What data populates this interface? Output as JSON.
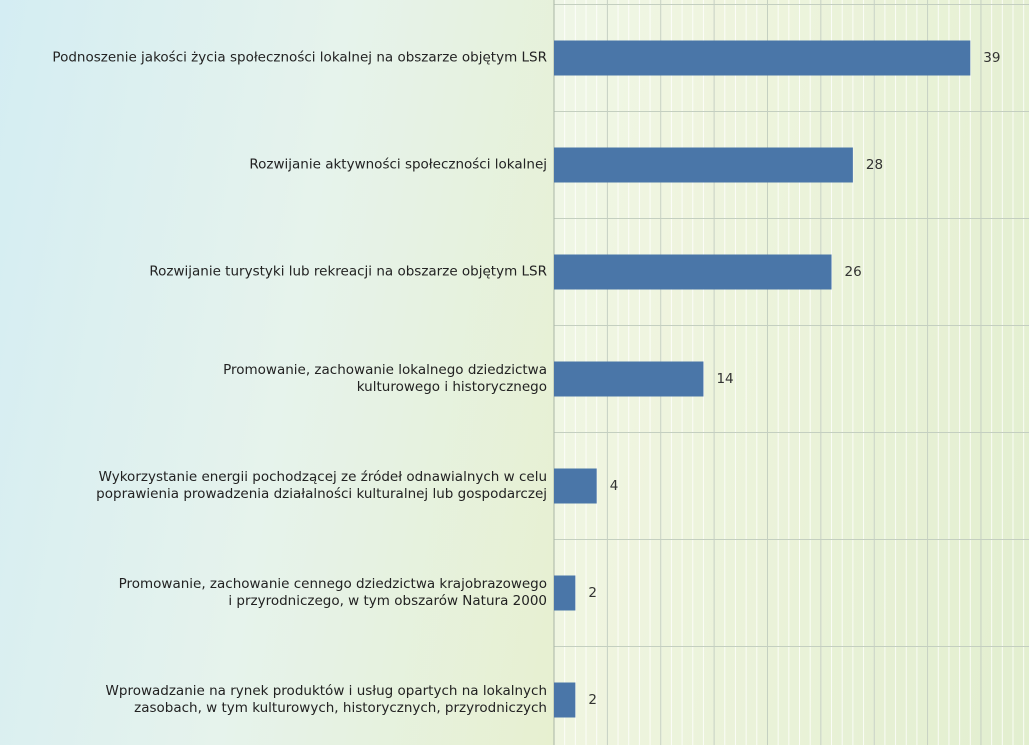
{
  "chart_data": {
    "type": "barh",
    "categories": [
      "Podnoszenie jakości życia społeczności lokalnej na obszarze objętym LSR",
      "Rozwijanie aktywności społeczności lokalnej",
      "Rozwijanie turystyki lub rekreacji na obszarze objętym LSR",
      "Promowanie, zachowanie lokalnego dziedzictwa\nkulturowego i historycznego",
      "Wykorzystanie energii pochodzącej ze źródeł odnawialnych w celu\npoprawienia prowadzenia działalności kulturalnej lub gospodarczej",
      "Promowanie, zachowanie cennego dziedzictwa krajobrazowego\ni przyrodniczego, w tym obszarów Natura 2000",
      "Wprowadzanie na rynek produktów i usług opartych na lokalnych\nzasobach, w tym kulturowych, historycznych, przyrodniczych"
    ],
    "values": [
      39,
      28,
      26,
      14,
      4,
      2,
      2
    ],
    "color": "#4a76a8",
    "xlim": [
      0,
      44.5
    ],
    "xticks": [
      0,
      5,
      10,
      15,
      20,
      25,
      30,
      35,
      40
    ],
    "grid": true
  }
}
